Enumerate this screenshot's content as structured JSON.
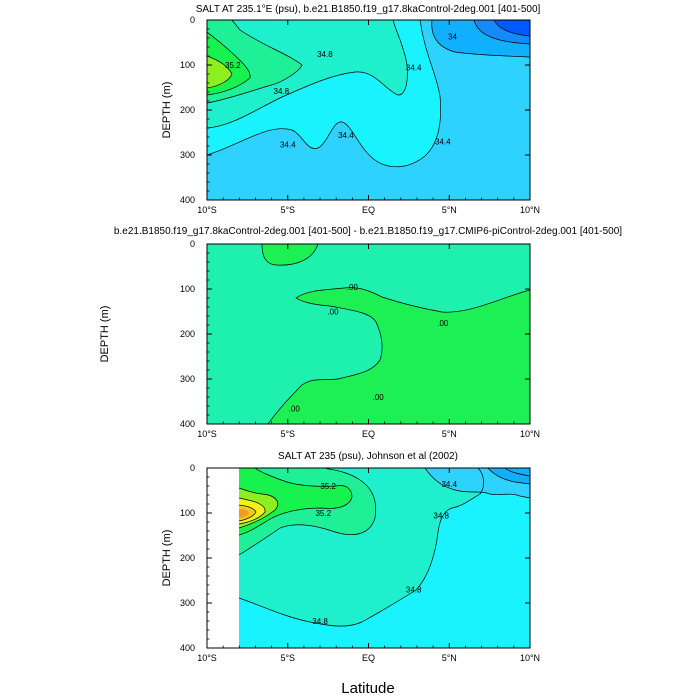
{
  "chart_data": [
    {
      "type": "contour",
      "title": "SALT AT 235.1°E (psu), b.e21.B1850.f19_g17.8kaControl-2deg.001 [401-500]",
      "xlabel": "",
      "ylabel": "DEPTH (m)",
      "xlim": [
        -10,
        10
      ],
      "ylim": [
        400,
        0
      ],
      "x_ticks": [
        -10,
        -5,
        0,
        5,
        10
      ],
      "x_tick_labels": [
        "10°S",
        "5°S",
        "EQ",
        "5°N",
        "10°N"
      ],
      "y_ticks": [
        0,
        100,
        200,
        300,
        400
      ],
      "y_tick_labels": [
        "0",
        "100",
        "200",
        "300",
        "400"
      ],
      "contour_labels": [
        {
          "text": "35.2",
          "lat": -8.4,
          "depth": 100
        },
        {
          "text": "34.8",
          "lat": -2.7,
          "depth": 75
        },
        {
          "text": "34.8",
          "lat": -5.4,
          "depth": 158
        },
        {
          "text": "34.4",
          "lat": -5.0,
          "depth": 277
        },
        {
          "text": "34.4",
          "lat": -1.4,
          "depth": 255
        },
        {
          "text": "34.4",
          "lat": 2.8,
          "depth": 105
        },
        {
          "text": "34.4",
          "lat": 4.6,
          "depth": 270
        },
        {
          "text": "34",
          "lat": 5.2,
          "depth": 37
        }
      ]
    },
    {
      "type": "contour",
      "title": "b.e21.B1850.f19_g17.8kaControl-2deg.001 [401-500] - b.e21.B1850.f19_g17.CMIP6-piControl-2deg.001 [401-500]",
      "xlabel": "",
      "ylabel": "DEPTH (m)",
      "xlim": [
        -10,
        10
      ],
      "ylim": [
        400,
        0
      ],
      "x_ticks": [
        -10,
        -5,
        0,
        5,
        10
      ],
      "x_tick_labels": [
        "10°S",
        "5°S",
        "EQ",
        "5°N",
        "10°N"
      ],
      "y_ticks": [
        0,
        100,
        200,
        300,
        400
      ],
      "y_tick_labels": [
        "0",
        "100",
        "200",
        "300",
        "400"
      ],
      "contour_labels": [
        {
          "text": ".00",
          "lat": -1.0,
          "depth": 95
        },
        {
          "text": ".00",
          "lat": -2.2,
          "depth": 150
        },
        {
          "text": ".00",
          "lat": 4.6,
          "depth": 175
        },
        {
          "text": ".00",
          "lat": 0.6,
          "depth": 340
        },
        {
          "text": ".00",
          "lat": -4.6,
          "depth": 365
        }
      ]
    },
    {
      "type": "contour",
      "title": "SALT AT 235 (psu), Johnson et al (2002)",
      "xlabel": "Latitude",
      "ylabel": "DEPTH (m)",
      "xlim": [
        -10,
        10
      ],
      "ylim": [
        400,
        0
      ],
      "x_ticks": [
        -10,
        -5,
        0,
        5,
        10
      ],
      "x_tick_labels": [
        "10°S",
        "5°S",
        "EQ",
        "5°N",
        "10°N"
      ],
      "y_ticks": [
        0,
        100,
        200,
        300,
        400
      ],
      "y_tick_labels": [
        "0",
        "100",
        "200",
        "300",
        "400"
      ],
      "contour_labels": [
        {
          "text": "35.2",
          "lat": -2.5,
          "depth": 40
        },
        {
          "text": "35.2",
          "lat": -2.8,
          "depth": 100
        },
        {
          "text": "34.8",
          "lat": 4.5,
          "depth": 105
        },
        {
          "text": "34.8",
          "lat": 2.8,
          "depth": 270
        },
        {
          "text": "34.8",
          "lat": -3.0,
          "depth": 340
        },
        {
          "text": "34.4",
          "lat": 5.0,
          "depth": 35
        }
      ]
    }
  ],
  "colors": {
    "aqua": "#19f2ff",
    "sky": "#2ed2ff",
    "blue_light": "#10b0ff",
    "blue": "#148aff",
    "blue_dark": "#0058ff",
    "seafoam": "#1ef0cd",
    "mint": "#1ef098",
    "green": "#17f24e",
    "lime": "#8cf01e",
    "yellow": "#f2f21a",
    "diff_bg": "#1ef0ae",
    "diff_green": "#1df055"
  }
}
